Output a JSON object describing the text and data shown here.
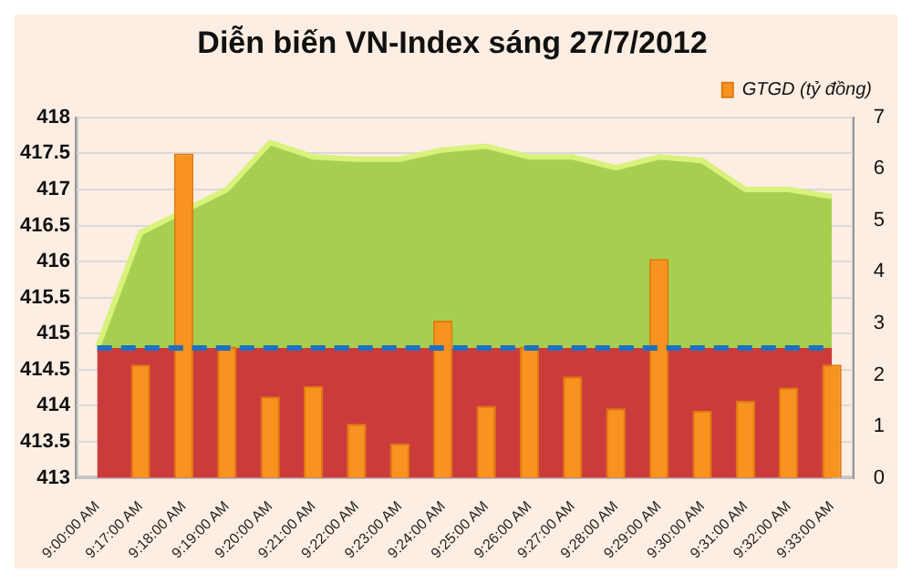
{
  "chart_data": {
    "type": "bar",
    "title": "Diễn biến VN-Index sáng 27/7/2012",
    "categories": [
      "9:00:00 AM",
      "9:17:00 AM",
      "9:18:00 AM",
      "9:19:00 AM",
      "9:20:00 AM",
      "9:21:00 AM",
      "9:22:00 AM",
      "9:23:00 AM",
      "9:24:00 AM",
      "9:25:00 AM",
      "9:26:00 AM",
      "9:27:00 AM",
      "9:28:00 AM",
      "9:29:00 AM",
      "9:30:00 AM",
      "9:31:00 AM",
      "9:32:00 AM",
      "9:33:00 AM"
    ],
    "series": [
      {
        "type": "area",
        "color": "#a6cf50",
        "values": [
          414.8,
          416.4,
          null,
          417.0,
          417.65,
          417.45,
          417.42,
          417.42,
          417.55,
          417.6,
          417.45,
          417.45,
          417.3,
          417.45,
          417.4,
          417.0,
          417.0,
          416.9
        ]
      },
      {
        "name": "GTGD (tỷ đồng)",
        "color": "#f7931e",
        "axis": "y2",
        "values": [
          null,
          2.2,
          6.3,
          2.55,
          1.58,
          1.78,
          1.05,
          0.67,
          3.05,
          1.4,
          2.55,
          1.97,
          1.35,
          4.25,
          1.3,
          1.5,
          1.75,
          2.2
        ]
      }
    ],
    "ylim": [
      413,
      418
    ],
    "yticks": [
      413,
      413.5,
      414,
      414.5,
      415,
      415.5,
      416,
      416.5,
      417,
      417.5,
      418
    ],
    "y2lim": [
      0,
      7
    ],
    "y2ticks": [
      0,
      1,
      2,
      3,
      4,
      5,
      6,
      7
    ],
    "ref_lines": [
      {
        "axis": "y",
        "value": 414.8,
        "color": "#1f6fc0",
        "line_style": "dashed"
      }
    ],
    "bands": [
      {
        "axis": "y",
        "from": 413,
        "to": 414.8,
        "color": "#cc3b3b"
      }
    ],
    "grid": "y",
    "legend": "top right"
  }
}
